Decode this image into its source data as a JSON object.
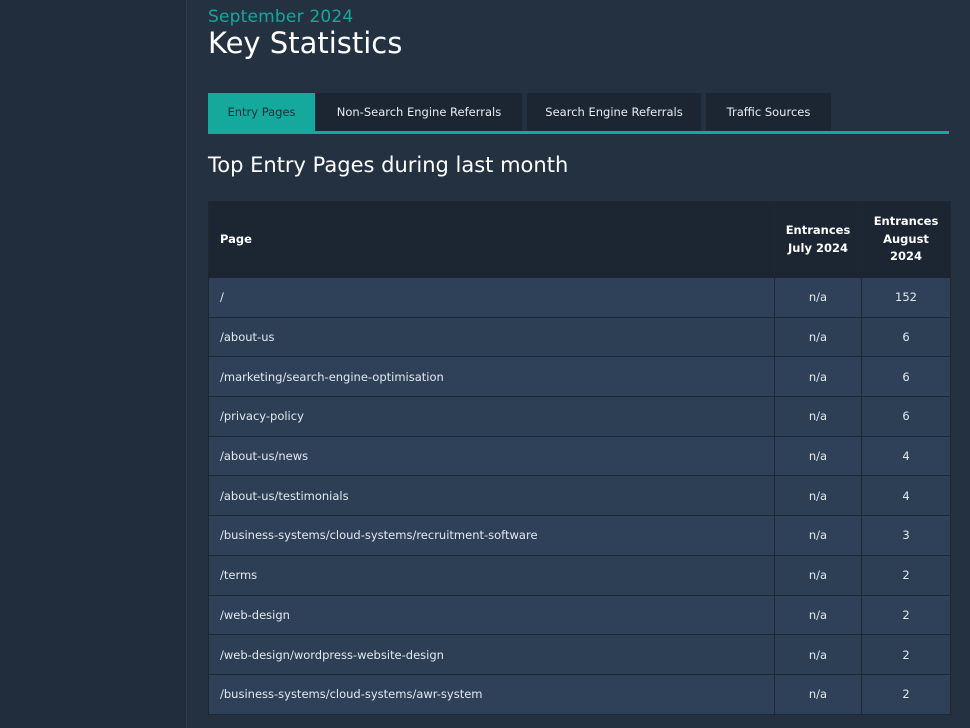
{
  "header": {
    "kicker": "September 2024",
    "title": "Key Statistics"
  },
  "tabs": [
    {
      "label": "Entry Pages",
      "active": true
    },
    {
      "label": "Non-Search Engine Referrals",
      "active": false
    },
    {
      "label": "Search Engine Referrals",
      "active": false
    },
    {
      "label": "Traffic Sources",
      "active": false
    }
  ],
  "section": {
    "title": "Top Entry Pages during last month"
  },
  "table": {
    "columns": {
      "page": "Page",
      "july": "Entrances July 2024",
      "august": "Entrances August 2024"
    },
    "rows": [
      {
        "page": "/",
        "july": "n/a",
        "august": "152"
      },
      {
        "page": "/about-us",
        "july": "n/a",
        "august": "6"
      },
      {
        "page": "/marketing/search-engine-optimisation",
        "july": "n/a",
        "august": "6"
      },
      {
        "page": "/privacy-policy",
        "july": "n/a",
        "august": "6"
      },
      {
        "page": "/about-us/news",
        "july": "n/a",
        "august": "4"
      },
      {
        "page": "/about-us/testimonials",
        "july": "n/a",
        "august": "4"
      },
      {
        "page": "/business-systems/cloud-systems/recruitment-software",
        "july": "n/a",
        "august": "3"
      },
      {
        "page": "/terms",
        "july": "n/a",
        "august": "2"
      },
      {
        "page": "/web-design",
        "july": "n/a",
        "august": "2"
      },
      {
        "page": "/web-design/wordpress-website-design",
        "july": "n/a",
        "august": "2"
      },
      {
        "page": "/business-systems/cloud-systems/awr-system",
        "july": "n/a",
        "august": "2"
      }
    ]
  },
  "colors": {
    "accent": "#15a89d",
    "background": "#243141",
    "sidebar": "#212d3c",
    "table_header": "#1b2632",
    "table_row": "#2e4158"
  }
}
